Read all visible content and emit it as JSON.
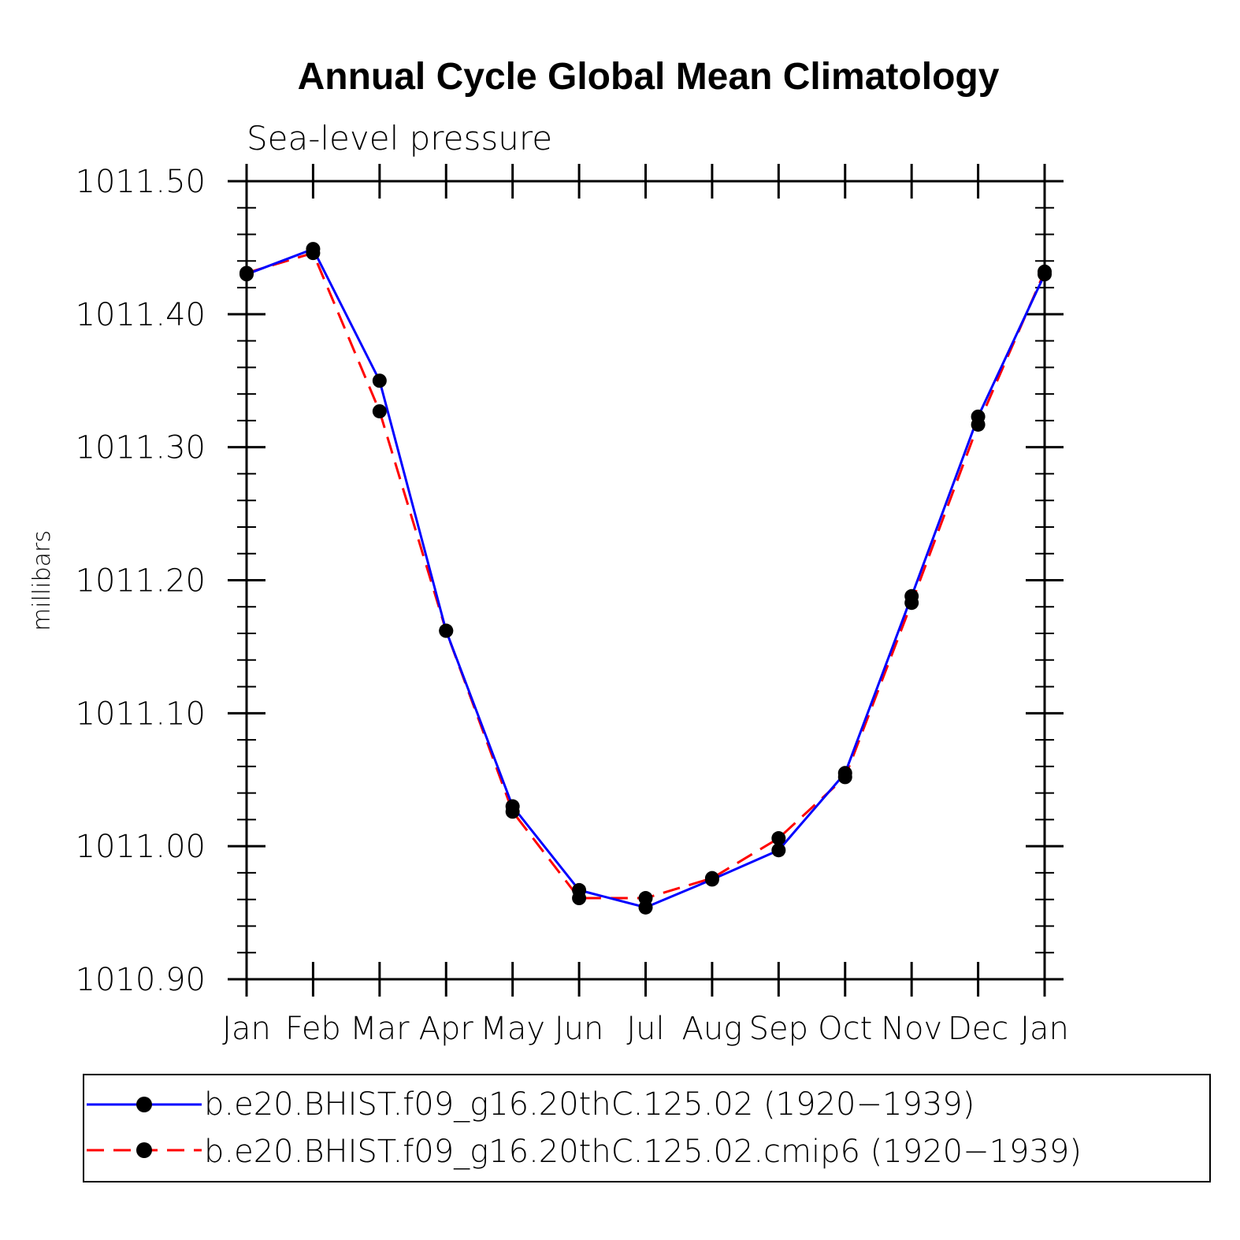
{
  "chart_data": {
    "type": "line",
    "title": "Annual Cycle Global Mean Climatology",
    "subtitle": "Sea-level pressure",
    "xlabel": "",
    "ylabel": "millibars",
    "categories": [
      "Jan",
      "Feb",
      "Mar",
      "Apr",
      "May",
      "Jun",
      "Jul",
      "Aug",
      "Sep",
      "Oct",
      "Nov",
      "Dec",
      "Jan"
    ],
    "ylim": [
      1010.9,
      1011.5
    ],
    "yticks": [
      1010.9,
      1011.0,
      1011.1,
      1011.2,
      1011.3,
      1011.4,
      1011.5
    ],
    "ytick_labels": [
      "1010.90",
      "1011.00",
      "1011.10",
      "1011.20",
      "1011.30",
      "1011.40",
      "1011.50"
    ],
    "grid": false,
    "legend_position": "bottom",
    "series": [
      {
        "name": "b.e20.BHIST.f09_g16.20thC.125.02 (1920−1939)",
        "color": "#0000ff",
        "style": "solid",
        "marker": "circle",
        "values": [
          1011.43,
          1011.449,
          1011.35,
          1011.162,
          1011.03,
          1010.967,
          1010.954,
          1010.975,
          1010.997,
          1011.055,
          1011.188,
          1011.323,
          1011.43
        ]
      },
      {
        "name": "b.e20.BHIST.f09_g16.20thC.125.02.cmip6 (1920−1939)",
        "color": "#ff0000",
        "style": "dashed",
        "marker": "circle",
        "values": [
          1011.431,
          1011.446,
          1011.327,
          1011.162,
          1011.026,
          1010.961,
          1010.961,
          1010.976,
          1011.006,
          1011.052,
          1011.183,
          1011.317,
          1011.432
        ]
      }
    ]
  }
}
